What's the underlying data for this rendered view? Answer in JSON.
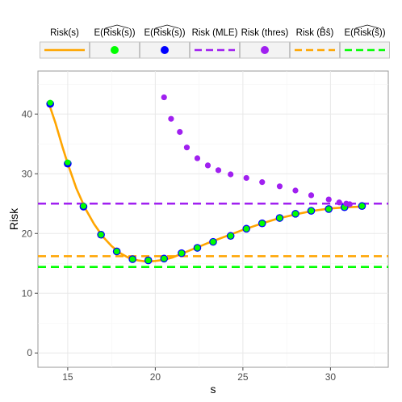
{
  "chart_data": {
    "type": "line",
    "xlabel": "s",
    "ylabel": "Risk",
    "xlim": [
      13.3,
      33.3
    ],
    "ylim": [
      -2.4,
      47.2
    ],
    "x_ticks": [
      15,
      20,
      25,
      30
    ],
    "y_ticks": [
      0,
      10,
      20,
      30,
      40
    ],
    "grid": true,
    "legend_position": "top",
    "legend": [
      {
        "label": "Risk(s)",
        "glyph": "solid-line",
        "color": "#FFA500"
      },
      {
        "label": "E(Risk(s))",
        "hat": true,
        "glyph": "point",
        "color": "#00FF00"
      },
      {
        "label": "E(Risk(s))",
        "hat": true,
        "glyph": "point",
        "color": "#0000FF"
      },
      {
        "label": "Risk (MLE)",
        "glyph": "dashed-line",
        "color": "#A020F0"
      },
      {
        "label": "Risk (thres)",
        "glyph": "point",
        "color": "#A020F0"
      },
      {
        "label": "Risk (B̂ŝ)",
        "glyph": "dashed-line",
        "color": "#FFA500"
      },
      {
        "label": "E(Risk(ŝ))",
        "hat": true,
        "glyph": "dashed-line",
        "color": "#00FF00"
      }
    ],
    "series": [
      {
        "name": "Risk(s)",
        "kind": "line",
        "color": "#FFA500",
        "x": [
          13.9,
          14.3,
          14.7,
          15.0,
          15.5,
          16.0,
          16.5,
          17.0,
          17.5,
          18.0,
          18.5,
          19.0,
          19.5,
          20.0,
          20.5,
          21.0,
          21.5,
          22.0,
          22.5,
          23.0,
          24.0,
          25.0,
          26.0,
          27.0,
          28.0,
          29.0,
          30.0,
          31.0,
          31.8
        ],
        "y": [
          42.0,
          38.5,
          34.5,
          31.7,
          27.5,
          24.2,
          21.6,
          19.5,
          17.9,
          16.7,
          15.9,
          15.5,
          15.3,
          15.4,
          15.6,
          16.0,
          16.6,
          17.2,
          17.8,
          18.4,
          19.5,
          20.6,
          21.6,
          22.5,
          23.2,
          23.8,
          24.2,
          24.4,
          24.5
        ]
      },
      {
        "name": "E(Risk(s)) blue",
        "kind": "points",
        "color": "#0000FF",
        "size": 4.8,
        "x": [
          14.0,
          15.0,
          15.9,
          16.9,
          17.8,
          18.7,
          19.6,
          20.5,
          21.5,
          22.4,
          23.3,
          24.3,
          25.2,
          26.1,
          27.1,
          28.0,
          28.9,
          29.9,
          30.8,
          31.8
        ],
        "y": [
          41.7,
          31.7,
          24.5,
          19.8,
          17.0,
          15.7,
          15.5,
          15.8,
          16.7,
          17.6,
          18.6,
          19.6,
          20.8,
          21.7,
          22.6,
          23.3,
          23.8,
          24.1,
          24.4,
          24.6
        ]
      },
      {
        "name": "E(Risk(s)) green",
        "kind": "points",
        "color": "#00FF00",
        "size": 3.6,
        "x": [
          14.0,
          15.0,
          15.9,
          16.9,
          17.8,
          18.7,
          19.6,
          20.5,
          21.5,
          22.4,
          23.3,
          24.3,
          25.2,
          26.1,
          27.1,
          28.0,
          28.9,
          29.9,
          30.8,
          31.8
        ],
        "y": [
          41.9,
          31.9,
          24.6,
          19.8,
          17.0,
          15.7,
          15.5,
          15.8,
          16.7,
          17.6,
          18.6,
          19.6,
          20.8,
          21.7,
          22.6,
          23.3,
          23.8,
          24.1,
          24.4,
          24.6
        ]
      },
      {
        "name": "Risk (thres)",
        "kind": "points",
        "color": "#A020F0",
        "size": 3.6,
        "x": [
          20.5,
          20.9,
          21.4,
          21.8,
          22.4,
          23.0,
          23.6,
          24.3,
          25.2,
          26.1,
          27.1,
          28.0,
          28.9,
          29.9,
          30.5,
          30.9,
          31.1
        ],
        "y": [
          42.8,
          39.2,
          37.0,
          34.4,
          32.6,
          31.4,
          30.6,
          29.9,
          29.3,
          28.6,
          27.9,
          27.2,
          26.4,
          25.7,
          25.2,
          25.0,
          24.9
        ]
      },
      {
        "name": "Risk (MLE)",
        "kind": "hline",
        "color": "#A020F0",
        "y": 25.0
      },
      {
        "name": "Risk (B̂ŝ)",
        "kind": "hline",
        "color": "#FFA500",
        "y": 16.2
      },
      {
        "name": "E(Risk(ŝ))",
        "kind": "hline",
        "color": "#00FF00",
        "y": 14.4
      }
    ]
  }
}
